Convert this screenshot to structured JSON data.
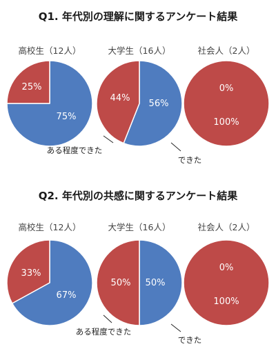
{
  "colors": {
    "blue": "#4F7CBF",
    "red": "#BE4A48",
    "stroke": "#ffffff"
  },
  "chart_data": [
    {
      "type": "pie",
      "title": "Q1. 年代別の理解に関するアンケート結果",
      "pies": [
        {
          "title": "高校生（12人）",
          "slices": [
            {
              "category": "できた",
              "value": 75,
              "label": "75%"
            },
            {
              "category": "ある程度できた",
              "value": 25,
              "label": "25%"
            }
          ]
        },
        {
          "title": "大学生（16人）",
          "slices": [
            {
              "category": "できた",
              "value": 56,
              "label": "56%"
            },
            {
              "category": "ある程度できた",
              "value": 44,
              "label": "44%"
            }
          ]
        },
        {
          "title": "社会人（2人）",
          "slices": [
            {
              "category": "できた",
              "value": 0,
              "label": "0%"
            },
            {
              "category": "ある程度できた",
              "value": 100,
              "label": "100%"
            }
          ]
        }
      ],
      "callouts": {
        "partial": "ある程度できた",
        "done": "できた"
      }
    },
    {
      "type": "pie",
      "title": "Q2. 年代別の共感に関するアンケート結果",
      "pies": [
        {
          "title": "高校生（12人）",
          "slices": [
            {
              "category": "できた",
              "value": 67,
              "label": "67%"
            },
            {
              "category": "ある程度できた",
              "value": 33,
              "label": "33%"
            }
          ]
        },
        {
          "title": "大学生（16人）",
          "slices": [
            {
              "category": "できた",
              "value": 50,
              "label": "50%"
            },
            {
              "category": "ある程度できた",
              "value": 50,
              "label": "50%"
            }
          ]
        },
        {
          "title": "社会人（2人）",
          "slices": [
            {
              "category": "できた",
              "value": 0,
              "label": "0%"
            },
            {
              "category": "ある程度できた",
              "value": 100,
              "label": "100%"
            }
          ]
        }
      ],
      "callouts": {
        "partial": "ある程度できた",
        "done": "できた"
      }
    }
  ]
}
